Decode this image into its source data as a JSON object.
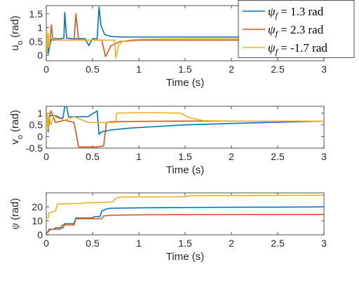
{
  "chart_data": [
    {
      "type": "line",
      "ylabel": "u_o (rad)",
      "ylabel_main": "u",
      "ylabel_sub": "o",
      "ylabel_unit": "(rad)",
      "xlabel": "Time (s)",
      "xlim": [
        0,
        3
      ],
      "ylim": [
        -0.2,
        1.8
      ],
      "xticks": [
        0,
        0.5,
        1,
        1.5,
        2,
        2.5,
        3
      ],
      "xtick_labels": [
        "0",
        "0.5",
        "1",
        "1.5",
        "2",
        "2.5",
        "3"
      ],
      "yticks": [
        0,
        0.5,
        1,
        1.5
      ],
      "ytick_labels": [
        "0",
        "0.5",
        "1",
        "1.5"
      ],
      "series": [
        {
          "name": "ψf = 1.3 rad",
          "color": "#0072BD",
          "x": [
            0,
            0.015,
            0.02,
            0.05,
            0.08,
            0.12,
            0.16,
            0.19,
            0.2,
            0.22,
            0.28,
            0.42,
            0.46,
            0.5,
            0.55,
            0.57,
            0.59,
            0.63,
            0.7,
            0.8,
            1.0,
            1.5,
            2.0,
            3.0
          ],
          "y": [
            0.55,
            0.5,
            0.05,
            0.55,
            0.6,
            0.6,
            0.6,
            0.62,
            1.55,
            0.62,
            0.6,
            0.6,
            0.35,
            0.6,
            0.6,
            1.75,
            1.1,
            0.75,
            0.68,
            0.66,
            0.66,
            0.66,
            0.66,
            0.66
          ]
        },
        {
          "name": "ψf = 2.3 rad",
          "color": "#D95319",
          "x": [
            0,
            0.02,
            0.04,
            0.055,
            0.07,
            0.09,
            0.15,
            0.2,
            0.25,
            0.3,
            0.32,
            0.35,
            0.42,
            0.6,
            0.64,
            0.7,
            0.8,
            1.0,
            1.5,
            2.0,
            3.0
          ],
          "y": [
            0.55,
            0.6,
            0.55,
            1.1,
            0.55,
            0.55,
            0.55,
            0.55,
            0.55,
            0.55,
            1.5,
            0.55,
            0.55,
            0.55,
            -0.05,
            0.35,
            0.5,
            0.55,
            0.55,
            0.55,
            0.55
          ]
        },
        {
          "name": "ψf = -1.7 rad",
          "color": "#EDB120",
          "x": [
            0,
            0.005,
            0.01,
            0.02,
            0.03,
            0.04,
            0.06,
            0.1,
            0.3,
            0.6,
            0.74,
            0.75,
            0.78,
            0.82,
            0.9,
            1.0,
            1.5,
            2.0,
            3.0
          ],
          "y": [
            0.2,
            0.9,
            0.1,
            0.8,
            0.3,
            0.6,
            0.6,
            0.55,
            0.55,
            0.55,
            0.55,
            -0.1,
            0.35,
            0.5,
            0.55,
            0.58,
            0.6,
            0.6,
            0.6
          ]
        }
      ]
    },
    {
      "type": "line",
      "ylabel": "v_o (rad)",
      "ylabel_main": "v",
      "ylabel_sub": "o",
      "ylabel_unit": "(rad)",
      "xlabel": "Time (s)",
      "xlim": [
        0,
        3
      ],
      "ylim": [
        -0.5,
        1.3
      ],
      "xticks": [
        0,
        0.5,
        1,
        1.5,
        2,
        2.5,
        3
      ],
      "xtick_labels": [
        "0",
        "0.5",
        "1",
        "1.5",
        "2",
        "2.5",
        "3"
      ],
      "yticks": [
        -0.5,
        0,
        0.5,
        1
      ],
      "ytick_labels": [
        "-0.5",
        "0",
        "0.5",
        "1"
      ],
      "series": [
        {
          "name": "ψf = 1.3 rad",
          "color": "#0072BD",
          "x": [
            0,
            0.01,
            0.02,
            0.04,
            0.06,
            0.1,
            0.15,
            0.18,
            0.2,
            0.22,
            0.24,
            0.26,
            0.4,
            0.45,
            0.55,
            0.57,
            0.6,
            0.7,
            0.9,
            1.2,
            1.5,
            2.0,
            2.5,
            3.0
          ],
          "y": [
            0.4,
            0.9,
            0.2,
            0.9,
            0.9,
            0.9,
            0.8,
            0.8,
            1.3,
            1.3,
            0.85,
            0.85,
            0.85,
            0.85,
            1.1,
            0.1,
            0.2,
            0.28,
            0.36,
            0.43,
            0.5,
            0.56,
            0.61,
            0.66
          ]
        },
        {
          "name": "ψf = 2.3 rad",
          "color": "#D95319",
          "x": [
            0,
            0.02,
            0.05,
            0.08,
            0.1,
            0.2,
            0.3,
            0.35,
            0.55,
            0.62,
            0.65,
            0.7,
            1.0,
            1.5,
            2.0,
            3.0
          ],
          "y": [
            0.5,
            0.7,
            1.1,
            0.8,
            0.6,
            0.7,
            0.6,
            -0.45,
            -0.45,
            -0.4,
            0.6,
            0.63,
            0.65,
            0.66,
            0.66,
            0.66
          ]
        },
        {
          "name": "ψf = -1.7 rad",
          "color": "#EDB120",
          "x": [
            0,
            0.01,
            0.02,
            0.03,
            0.05,
            0.08,
            0.12,
            0.2,
            0.3,
            0.45,
            0.6,
            0.7,
            0.75,
            0.76,
            0.9,
            1.2,
            1.45,
            1.55,
            1.7,
            2.0,
            3.0
          ],
          "y": [
            0.2,
            1.0,
            0.3,
            0.9,
            0.5,
            0.9,
            0.8,
            0.7,
            0.85,
            0.6,
            0.6,
            0.6,
            0.6,
            1.0,
            1.02,
            1.02,
            1.0,
            0.8,
            0.68,
            0.66,
            0.66
          ]
        }
      ]
    },
    {
      "type": "line",
      "ylabel": "ψ (rad)",
      "ylabel_main": "ψ",
      "ylabel_sub": "",
      "ylabel_unit": "(rad)",
      "xlabel": "Time (s)",
      "xlim": [
        0,
        3
      ],
      "ylim": [
        0,
        30
      ],
      "xticks": [
        0,
        0.5,
        1,
        1.5,
        2,
        2.5,
        3
      ],
      "xtick_labels": [
        "0",
        "0.5",
        "1",
        "1.5",
        "2",
        "2.5",
        "3"
      ],
      "yticks": [
        0,
        10,
        20
      ],
      "ytick_labels": [
        "0",
        "10",
        "20"
      ],
      "series": [
        {
          "name": "ψf = 1.3 rad",
          "color": "#0072BD",
          "x": [
            0,
            0.02,
            0.03,
            0.08,
            0.1,
            0.18,
            0.2,
            0.3,
            0.32,
            0.5,
            0.52,
            0.58,
            0.6,
            0.65,
            0.7,
            1.0,
            1.5,
            2.0,
            2.5,
            3.0
          ],
          "y": [
            1,
            2,
            4,
            4,
            5,
            5,
            8,
            8,
            12,
            12,
            13,
            13,
            17,
            18.5,
            19,
            19.3,
            19.5,
            19.7,
            19.8,
            20
          ]
        },
        {
          "name": "ψf = 2.3 rad",
          "color": "#D95319",
          "x": [
            0,
            0.03,
            0.05,
            0.15,
            0.17,
            0.3,
            0.32,
            0.6,
            0.62,
            0.7,
            1.0,
            1.5,
            2.0,
            3.0
          ],
          "y": [
            1,
            3,
            4,
            4,
            7,
            7,
            11.5,
            11.5,
            13.5,
            14,
            14.3,
            14.4,
            14.5,
            14.6
          ]
        },
        {
          "name": "ψf = -1.7 rad",
          "color": "#EDB120",
          "x": [
            0,
            0.02,
            0.03,
            0.05,
            0.1,
            0.12,
            0.4,
            0.45,
            0.5,
            0.72,
            0.75,
            0.8,
            1.0,
            1.5,
            1.55,
            2.0,
            2.5,
            3.0
          ],
          "y": [
            12,
            12,
            16,
            16,
            17,
            22,
            22.5,
            23,
            23,
            23.5,
            26,
            27,
            27.1,
            27.2,
            28,
            28.1,
            28.2,
            28.3
          ]
        }
      ]
    }
  ],
  "legend": {
    "placement": "top-right",
    "entries": [
      {
        "symbol": "ψ",
        "subscript": "f",
        "value": "= 1.3 rad",
        "color": "#0072BD"
      },
      {
        "symbol": "ψ",
        "subscript": "f",
        "value": "= 2.3 rad",
        "color": "#D95319"
      },
      {
        "symbol": "ψ",
        "subscript": "f",
        "value": "= -1.7 rad",
        "color": "#EDB120"
      }
    ]
  }
}
